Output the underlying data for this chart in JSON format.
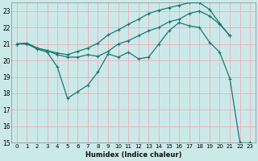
{
  "xlabel": "Humidex (Indice chaleur)",
  "xlim": [
    -0.5,
    23.5
  ],
  "ylim": [
    15,
    23.5
  ],
  "xticks": [
    0,
    1,
    2,
    3,
    4,
    5,
    6,
    7,
    8,
    9,
    10,
    11,
    12,
    13,
    14,
    15,
    16,
    17,
    18,
    19,
    20,
    21,
    22,
    23
  ],
  "yticks": [
    15,
    16,
    17,
    18,
    19,
    20,
    21,
    22,
    23
  ],
  "bg_color": "#cce9ea",
  "grid_color": "#e8b4bc",
  "line_color": "#1a7870",
  "line1_x": [
    0,
    1,
    2,
    3,
    4,
    5,
    6,
    7,
    8,
    9,
    10,
    11,
    12,
    13,
    14,
    15,
    16,
    17,
    18,
    19,
    20,
    21
  ],
  "line1_y": [
    21.0,
    21.05,
    20.75,
    20.6,
    20.45,
    20.35,
    20.55,
    20.75,
    21.05,
    21.55,
    21.85,
    22.2,
    22.5,
    22.85,
    23.05,
    23.2,
    23.35,
    23.5,
    23.5,
    23.1,
    22.25,
    21.5
  ],
  "line2_x": [
    0,
    1,
    2,
    3,
    4,
    5,
    6,
    7,
    8,
    9,
    10,
    11,
    12,
    13,
    14,
    15,
    16,
    17,
    18,
    19,
    20,
    21
  ],
  "line2_y": [
    21.0,
    21.05,
    20.75,
    20.6,
    20.35,
    20.2,
    20.2,
    20.35,
    20.25,
    20.55,
    21.0,
    21.2,
    21.5,
    21.8,
    22.0,
    22.35,
    22.5,
    22.85,
    23.0,
    22.7,
    22.2,
    21.5
  ],
  "line3_x": [
    0,
    1,
    2,
    3,
    4,
    5,
    6,
    7,
    8,
    9,
    10,
    11,
    12,
    13,
    14,
    15,
    16,
    17,
    18,
    19,
    20,
    21,
    22,
    23
  ],
  "line3_y": [
    21.0,
    21.0,
    20.7,
    20.5,
    19.6,
    17.7,
    18.1,
    18.5,
    19.3,
    20.4,
    20.2,
    20.5,
    20.1,
    20.2,
    21.0,
    21.8,
    22.3,
    22.1,
    22.0,
    21.1,
    20.5,
    18.9,
    15.0,
    15.0
  ]
}
